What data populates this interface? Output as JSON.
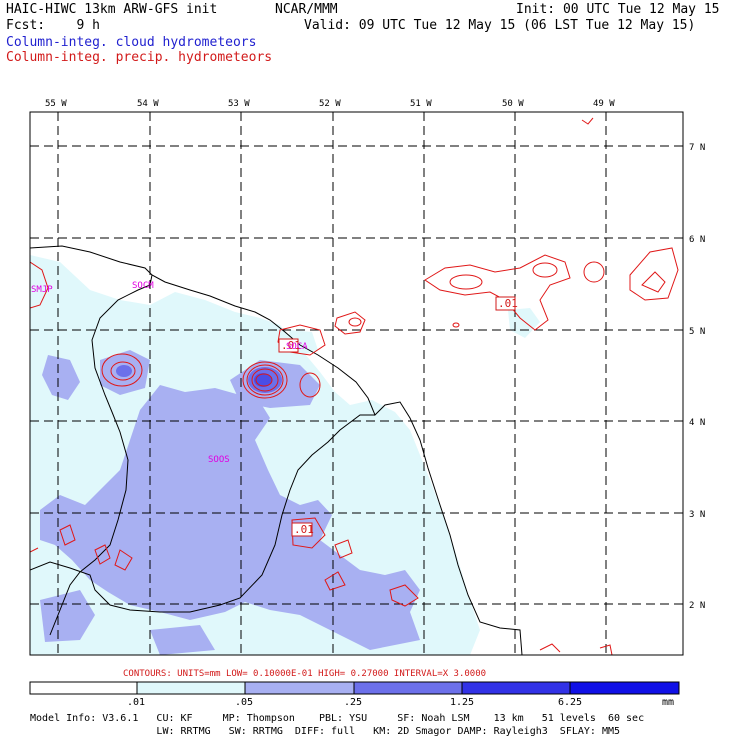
{
  "header": {
    "model_title": "HAIC-HIWC 13km ARW-GFS init",
    "org": "NCAR/MMM",
    "init": "Init: 00 UTC Tue 12 May 15",
    "fcst": "Fcst:    9 h",
    "valid": "Valid: 09 UTC Tue 12 May 15 (06 LST Tue 12 May 15)",
    "field_cloud": "Column-integ. cloud hydrometeors",
    "field_precip": "Column-integ. precip. hydrometeors"
  },
  "map": {
    "lon_labels": [
      "55 W",
      "54 W",
      "53 W",
      "52 W",
      "51 W",
      "50 W",
      "49 W"
    ],
    "lat_labels": [
      "7 N",
      "6 N",
      "5 N",
      "4 N",
      "3 N",
      "2 N"
    ],
    "stations": [
      "SMJP",
      "SOCM",
      "SOCA",
      "SOOS"
    ],
    "contour_labels": [
      ".01",
      ".01",
      ".01"
    ]
  },
  "contour_info": {
    "text": "CONTOURS:  UNITS=mm  LOW= 0.10000E-01  HIGH= 0.27000     INTERVAL=X  3.0000"
  },
  "colorbar": {
    "labels": [
      ".01",
      ".05",
      ".25",
      "1.25",
      "6.25"
    ],
    "units": "mm",
    "colors": [
      "#ffffff",
      "#e0f8fb",
      "#a8b0f2",
      "#6c70ea",
      "#3232e6",
      "#1010e6"
    ]
  },
  "footer": {
    "line1": "Model Info: V3.6.1   CU: KF     MP: Thompson    PBL: YSU     SF: Noah LSM    13 km   51 levels  60 sec",
    "line2": "                     LW: RRTMG   SW: RRTMG  DIFF: full   KM: 2D Smagor DAMP: Rayleigh3  SFLAY: MM5"
  }
}
